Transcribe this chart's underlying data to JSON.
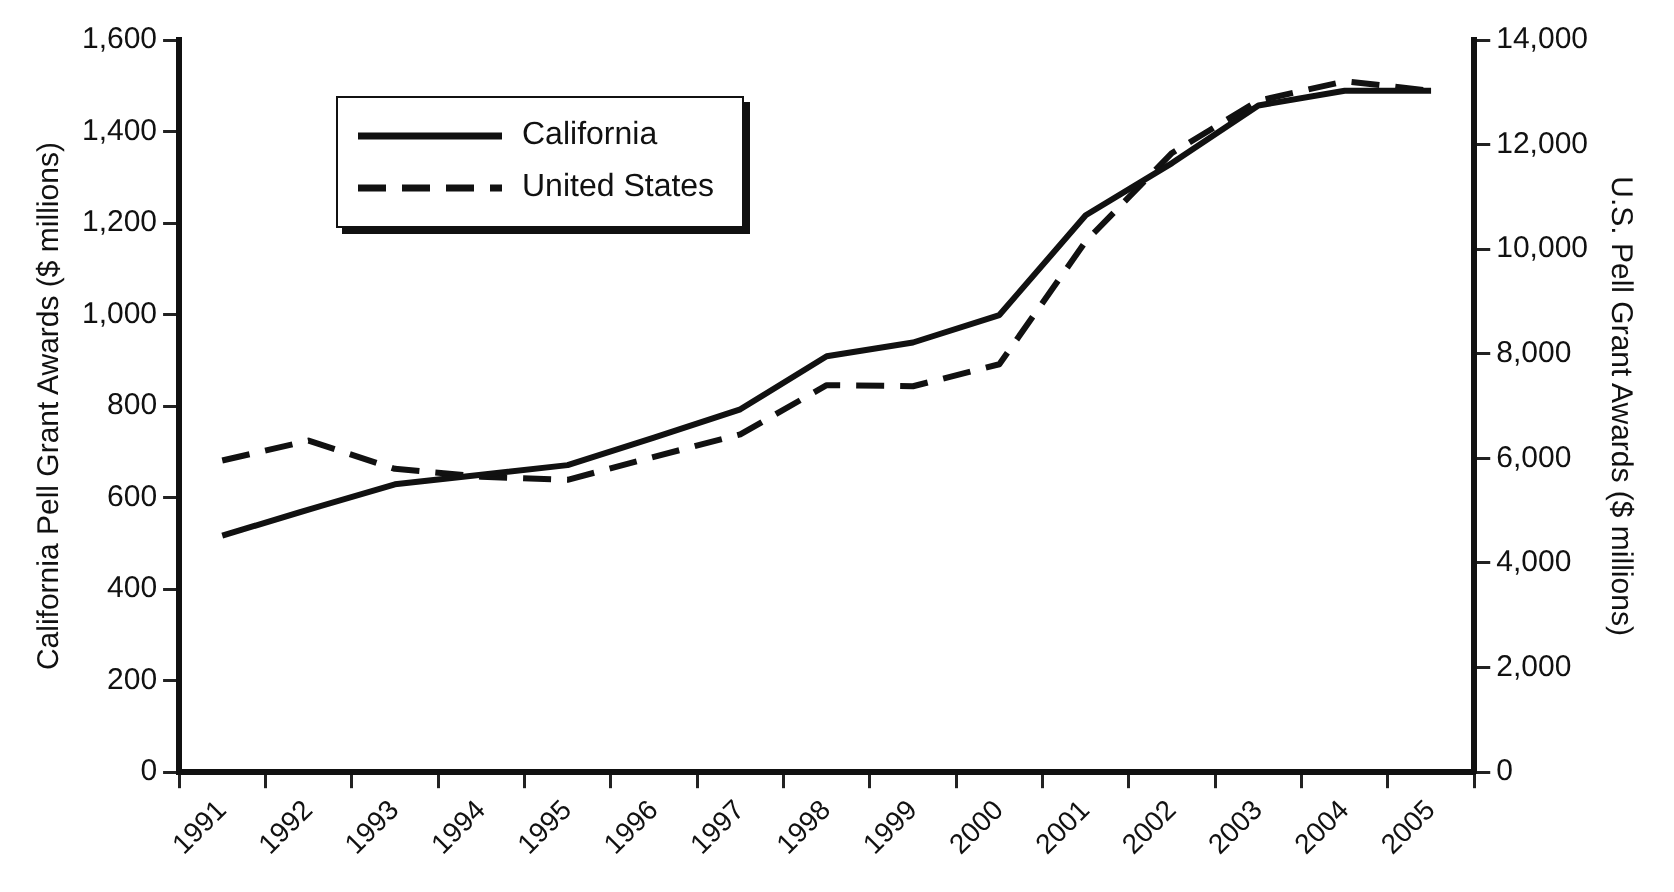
{
  "chart_data": {
    "type": "line",
    "categories": [
      "1991",
      "1992",
      "1993",
      "1994",
      "1995",
      "1996",
      "1997",
      "1998",
      "1999",
      "2000",
      "2001",
      "2002",
      "2003",
      "2004",
      "2005"
    ],
    "ylabel": "California Pell Grant Awards ($ millions)",
    "y2label": "U.S. Pell Grant Awards ($ millions)",
    "ylim": [
      0,
      1600
    ],
    "yticks": [
      0,
      200,
      400,
      600,
      800,
      {
        "value": 1000,
        "label": "1,000"
      },
      {
        "value": 1200,
        "label": "1,200"
      },
      {
        "value": 1400,
        "label": "1,400"
      },
      {
        "value": 1600,
        "label": "1,600"
      }
    ],
    "y2lim": [
      0,
      14000
    ],
    "y2ticks": [
      0,
      {
        "value": 2000,
        "label": "2,000"
      },
      {
        "value": 4000,
        "label": "4,000"
      },
      {
        "value": 6000,
        "label": "6,000"
      },
      {
        "value": 8000,
        "label": "8,000"
      },
      {
        "value": 10000,
        "label": "10,000"
      },
      {
        "value": 12000,
        "label": "12,000"
      },
      {
        "value": 14000,
        "label": "14,000"
      }
    ],
    "grid": false,
    "legend": "top left",
    "marker": "none",
    "series": [
      {
        "name": "California",
        "color": "#111111",
        "line_style": "solid",
        "values": [
          517,
          574,
          629,
          650,
          671,
          731,
          793,
          909,
          939,
          999,
          1217,
          1331,
          1457,
          1489,
          1489
        ]
      },
      {
        "name": "United States",
        "color": "#111111",
        "line_style": "dashed",
        "axis": "y2",
        "values": [
          5960,
          6340,
          5800,
          5650,
          5590,
          6030,
          6460,
          7400,
          7380,
          7800,
          10150,
          11840,
          12840,
          13210,
          13030
        ]
      }
    ]
  }
}
